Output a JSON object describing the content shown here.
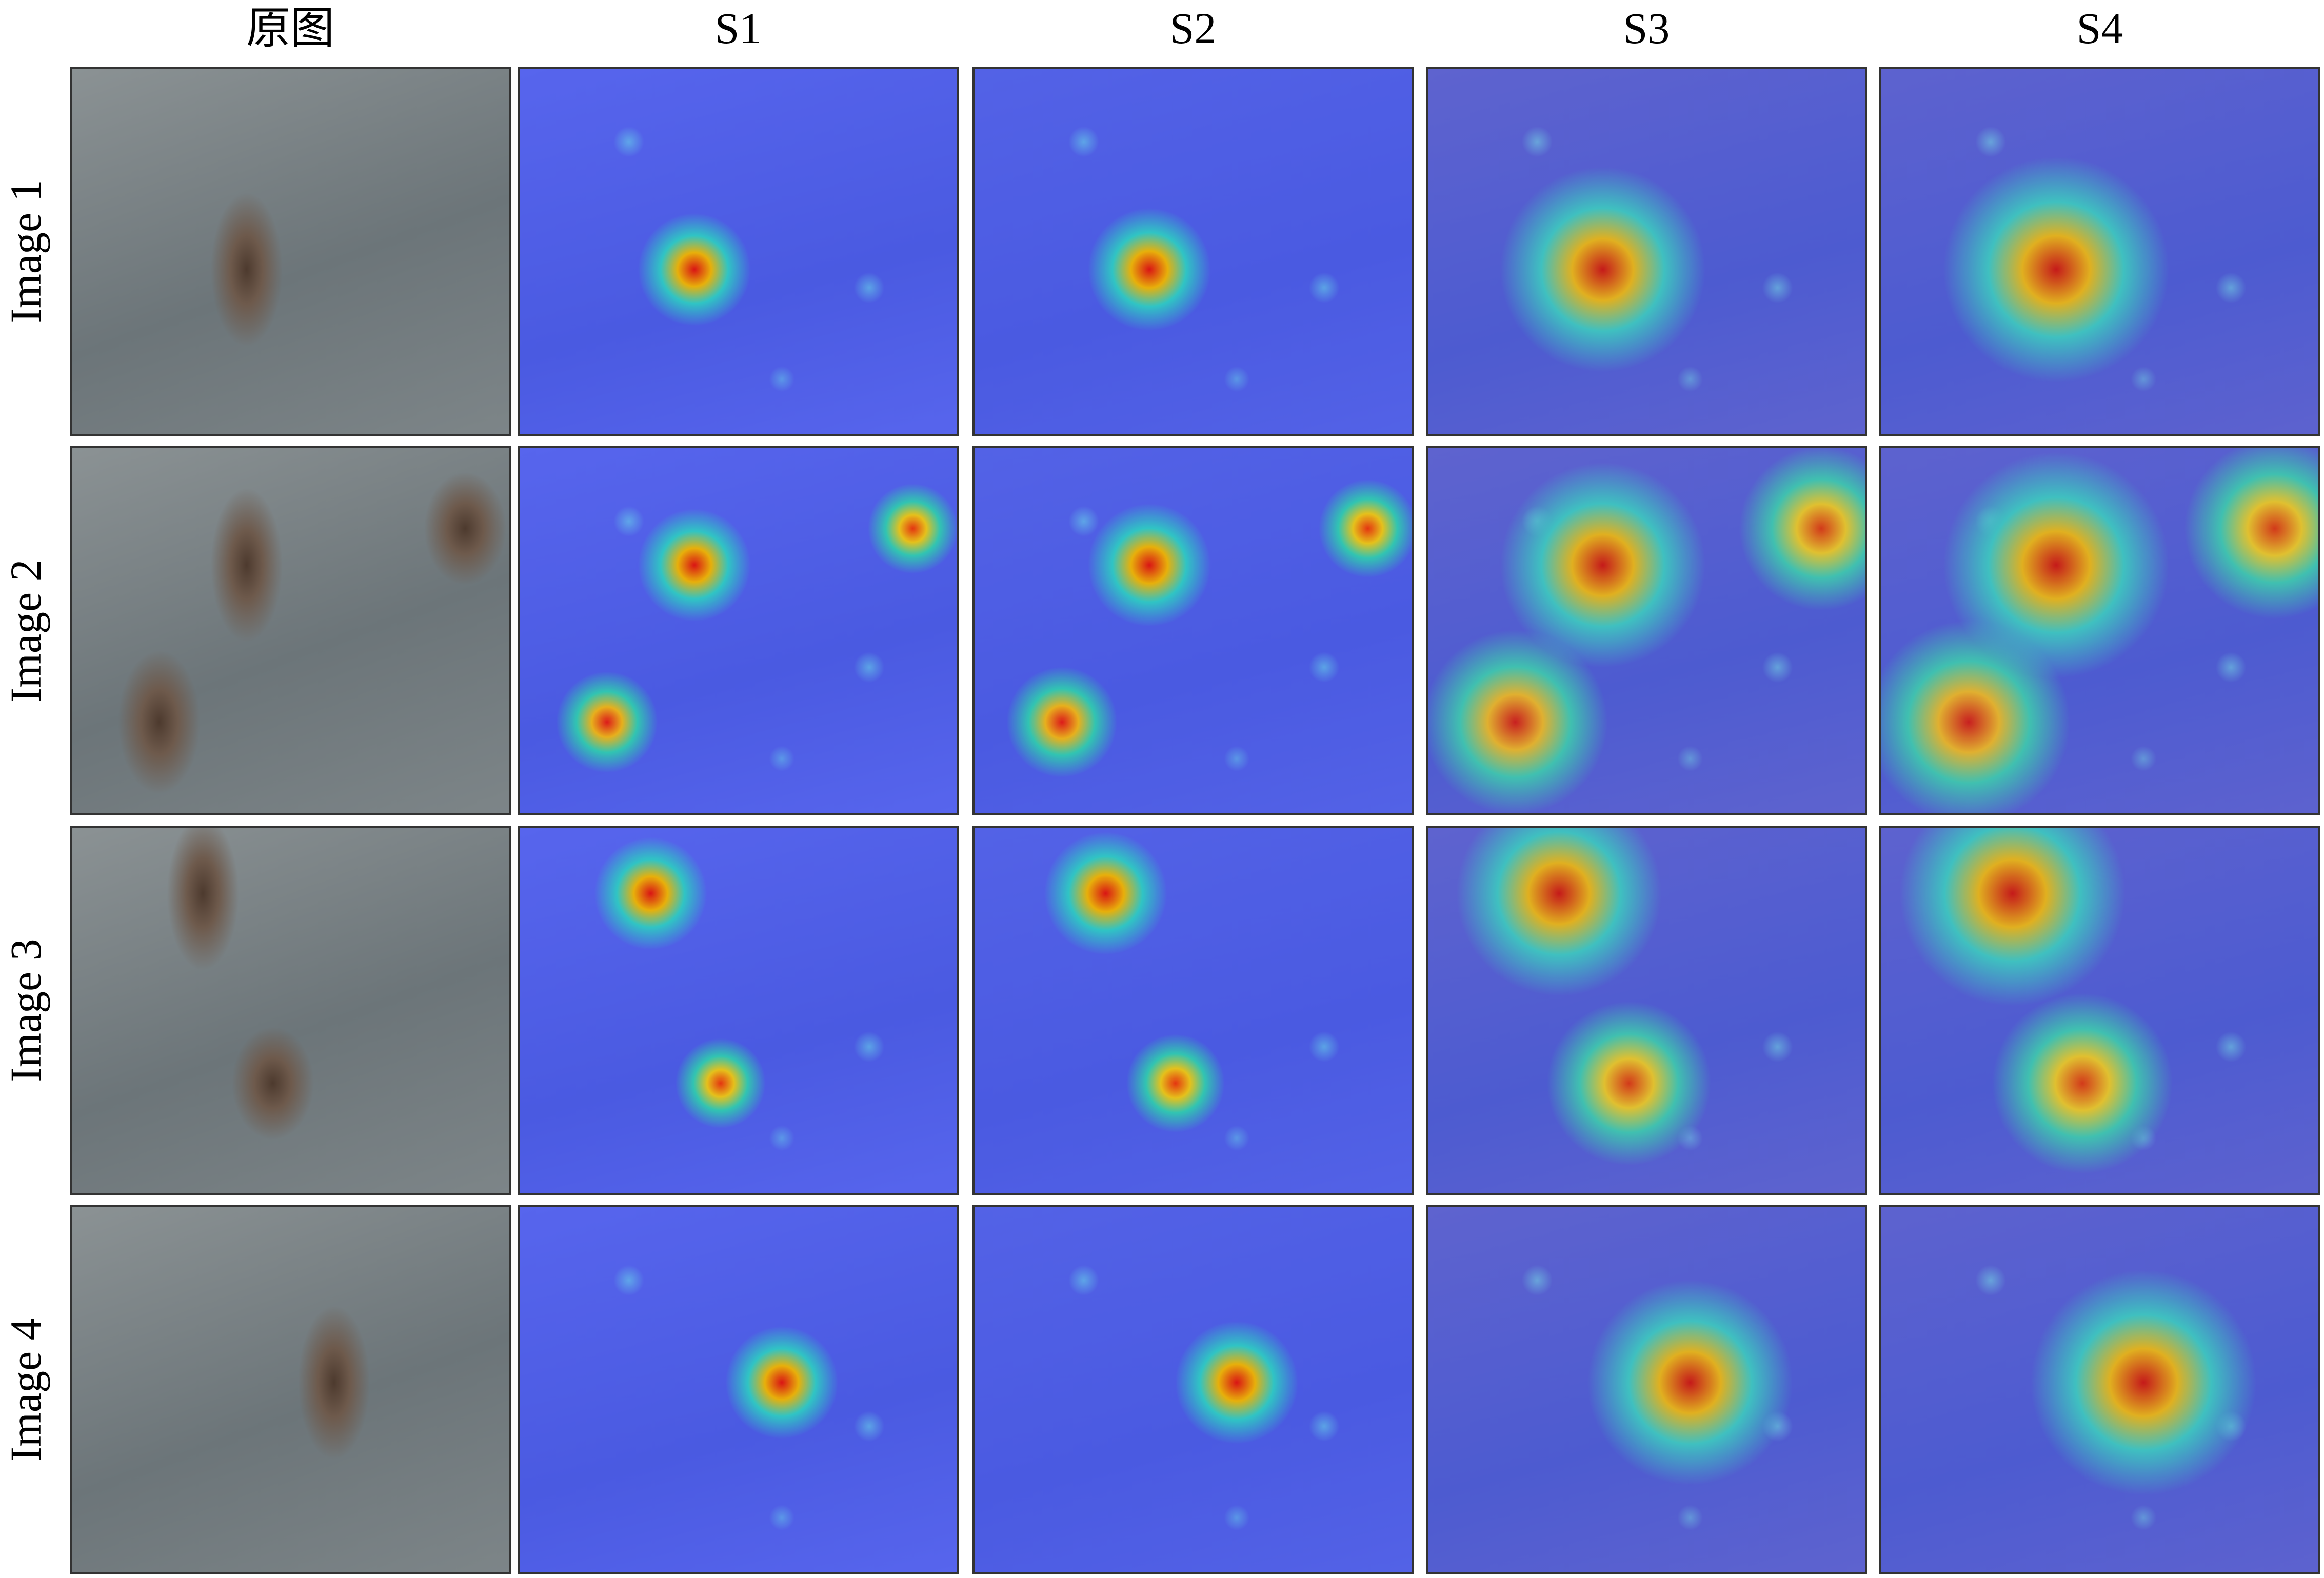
{
  "header": {
    "columns": [
      "原图",
      "S1",
      "S2",
      "S3",
      "S4"
    ]
  },
  "rows": [
    {
      "label": "Image 1"
    },
    {
      "label": "Image 2"
    },
    {
      "label": "Image 3"
    },
    {
      "label": "Image 4"
    }
  ]
}
